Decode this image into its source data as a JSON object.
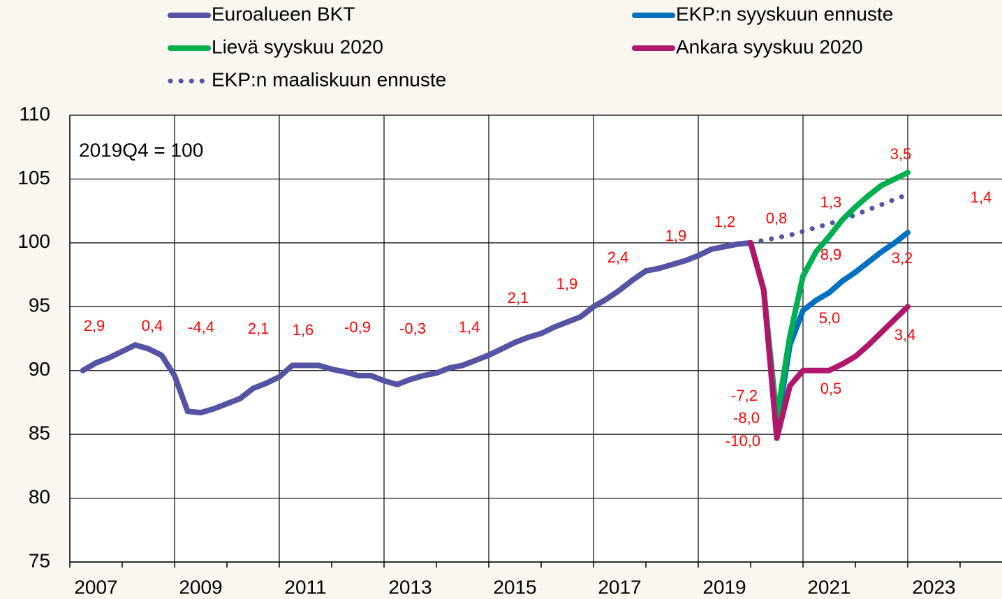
{
  "chart_data": {
    "type": "line",
    "note": "2019Q4 = 100",
    "x": [
      2007.25,
      2007.5,
      2007.75,
      2008,
      2008.25,
      2008.5,
      2008.75,
      2009,
      2009.25,
      2009.5,
      2009.75,
      2010,
      2010.25,
      2010.5,
      2010.75,
      2011,
      2011.25,
      2011.5,
      2011.75,
      2012,
      2012.25,
      2012.5,
      2012.75,
      2013,
      2013.25,
      2013.5,
      2013.75,
      2014,
      2014.25,
      2014.5,
      2014.75,
      2015,
      2015.25,
      2015.5,
      2015.75,
      2016,
      2016.25,
      2016.5,
      2016.75,
      2017,
      2017.25,
      2017.5,
      2017.75,
      2018,
      2018.25,
      2018.5,
      2018.75,
      2019,
      2019.25,
      2019.5,
      2019.75,
      2020,
      2020.25,
      2020.5,
      2020.75,
      2021,
      2021.25,
      2021.5,
      2021.75,
      2022,
      2022.25,
      2022.5,
      2022.75,
      2023
    ],
    "series": [
      {
        "name": "Euroalueen BKT",
        "color": "#5453a4",
        "linestyle": "solid",
        "values": [
          90.0,
          90.6,
          91.0,
          91.5,
          92.0,
          91.7,
          91.2,
          89.6,
          86.8,
          86.7,
          87.0,
          87.4,
          87.8,
          88.6,
          89.0,
          89.5,
          90.4,
          90.4,
          90.4,
          90.1,
          89.9,
          89.6,
          89.6,
          89.2,
          88.9,
          89.3,
          89.6,
          89.8,
          90.2,
          90.4,
          90.8,
          91.2,
          91.7,
          92.2,
          92.6,
          92.9,
          93.4,
          93.8,
          94.2,
          95.0,
          95.6,
          96.3,
          97.1,
          97.8,
          98.0,
          98.3,
          98.6,
          99.0,
          99.5,
          99.7,
          99.9,
          100.0,
          null,
          null,
          null,
          null,
          null,
          null,
          null,
          null,
          null,
          null,
          null,
          null
        ]
      },
      {
        "name": "EKP:n syyskuun ennuste",
        "color": "#0070c0",
        "linestyle": "solid",
        "values": [
          null,
          null,
          null,
          null,
          null,
          null,
          null,
          null,
          null,
          null,
          null,
          null,
          null,
          null,
          null,
          null,
          null,
          null,
          null,
          null,
          null,
          null,
          null,
          null,
          null,
          null,
          null,
          null,
          null,
          null,
          null,
          null,
          null,
          null,
          null,
          null,
          null,
          null,
          null,
          null,
          null,
          null,
          null,
          null,
          null,
          null,
          null,
          null,
          null,
          null,
          null,
          100.0,
          96.3,
          85.5,
          92.0,
          94.7,
          95.5,
          96.1,
          97.0,
          97.7,
          98.5,
          99.3,
          100.0,
          100.8
        ]
      },
      {
        "name": "Lievä syyskuu 2020",
        "color": "#00b050",
        "linestyle": "solid",
        "values": [
          null,
          null,
          null,
          null,
          null,
          null,
          null,
          null,
          null,
          null,
          null,
          null,
          null,
          null,
          null,
          null,
          null,
          null,
          null,
          null,
          null,
          null,
          null,
          null,
          null,
          null,
          null,
          null,
          null,
          null,
          null,
          null,
          null,
          null,
          null,
          null,
          null,
          null,
          null,
          null,
          null,
          null,
          null,
          null,
          null,
          null,
          null,
          null,
          null,
          null,
          null,
          100.0,
          96.3,
          86.3,
          92.7,
          97.4,
          99.3,
          100.5,
          101.8,
          102.8,
          103.7,
          104.5,
          105.0,
          105.5
        ]
      },
      {
        "name": "Ankara syyskuu 2020",
        "color": "#b0166b",
        "linestyle": "solid",
        "values": [
          null,
          null,
          null,
          null,
          null,
          null,
          null,
          null,
          null,
          null,
          null,
          null,
          null,
          null,
          null,
          null,
          null,
          null,
          null,
          null,
          null,
          null,
          null,
          null,
          null,
          null,
          null,
          null,
          null,
          null,
          null,
          null,
          null,
          null,
          null,
          null,
          null,
          null,
          null,
          null,
          null,
          null,
          null,
          null,
          null,
          null,
          null,
          null,
          null,
          null,
          null,
          100.0,
          96.3,
          84.7,
          88.8,
          90.0,
          90.0,
          90.0,
          90.5,
          91.1,
          92.0,
          93.0,
          94.0,
          95.0
        ]
      },
      {
        "name": "EKP:n maaliskuun ennuste",
        "color": "#5453a4",
        "linestyle": "dotted",
        "values": [
          null,
          null,
          null,
          null,
          null,
          null,
          null,
          null,
          null,
          null,
          null,
          null,
          null,
          null,
          null,
          null,
          null,
          null,
          null,
          null,
          null,
          null,
          null,
          null,
          null,
          null,
          null,
          null,
          null,
          null,
          null,
          null,
          null,
          null,
          null,
          null,
          null,
          null,
          null,
          null,
          null,
          null,
          null,
          null,
          null,
          null,
          null,
          null,
          null,
          null,
          null,
          100.0,
          100.2,
          100.4,
          100.6,
          100.9,
          101.2,
          101.5,
          101.8,
          102.2,
          102.6,
          103.0,
          103.4,
          103.8
        ]
      }
    ],
    "annotations": [
      "2,9",
      "0,4",
      "-4,4",
      "2,1",
      "1,6",
      "-0,9",
      "-0,3",
      "1,4",
      "2,1",
      "1,9",
      "2,4",
      "1,9",
      "1,2",
      "0,8",
      "1,3",
      "1,4",
      "3,5",
      "8,9",
      "3,2",
      "5,0",
      "3,4",
      "0,5",
      "-7,2",
      "-8,0",
      "-10,0"
    ],
    "annotation_color": "#ff0000",
    "xlim": [
      2007,
      2024.8
    ],
    "xticks": [
      2007,
      2009,
      2011,
      2013,
      2015,
      2017,
      2019,
      2021,
      2023
    ],
    "ylim": [
      75,
      110
    ],
    "yticks": [
      75,
      80,
      85,
      90,
      95,
      100,
      105,
      110
    ],
    "grid": true
  }
}
